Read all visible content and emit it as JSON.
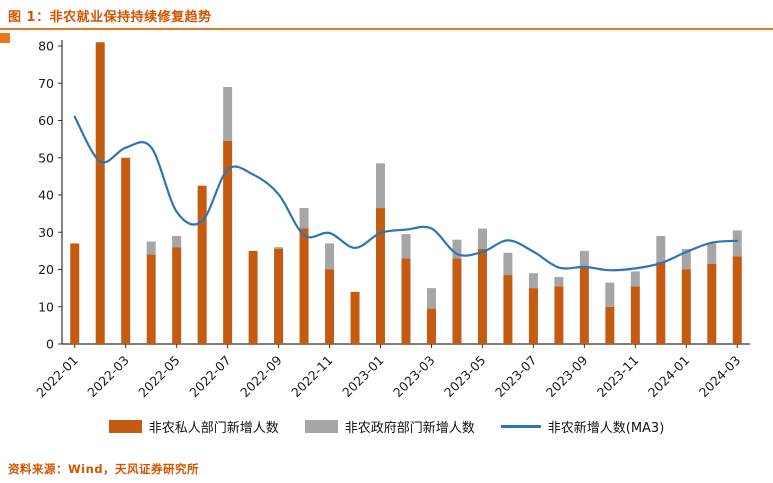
{
  "header": {
    "title": "图 1：非农就业保持持续修复趋势",
    "accent_color": "#e87722",
    "title_color": "#d35400"
  },
  "footer": {
    "source": "资料来源：Wind，天风证券研究所"
  },
  "legend": [
    {
      "label": "非农私人部门新增人数",
      "swatch": "orange-bar",
      "color": "#c55a11"
    },
    {
      "label": "非农政府部门新增人数",
      "swatch": "gray-bar",
      "color": "#a6a6a6"
    },
    {
      "label": "非农新增人数(MA3)",
      "swatch": "blue-line",
      "color": "#2e75b6"
    }
  ],
  "chart_data": {
    "type": "bar",
    "subtype": "stacked-bar-with-line",
    "title": "非农就业保持持续修复趋势",
    "xlabel": "",
    "ylabel": "",
    "ylim": [
      0,
      80
    ],
    "y_ticks": [
      0,
      10,
      20,
      30,
      40,
      50,
      60,
      70,
      80
    ],
    "grid": false,
    "legend_position": "bottom",
    "categories": [
      "2022-01",
      "2022-02",
      "2022-03",
      "2022-04",
      "2022-05",
      "2022-06",
      "2022-07",
      "2022-08",
      "2022-09",
      "2022-10",
      "2022-11",
      "2022-12",
      "2023-01",
      "2023-02",
      "2023-03",
      "2023-04",
      "2023-05",
      "2023-06",
      "2023-07",
      "2023-08",
      "2023-09",
      "2023-10",
      "2023-11",
      "2023-12",
      "2024-01",
      "2024-02",
      "2024-03"
    ],
    "x_label_every": 2,
    "series": [
      {
        "name": "非农私人部门新增人数",
        "type": "bar",
        "stack": "jobs",
        "color": "#c55a11",
        "values": [
          27,
          81,
          50,
          24,
          26,
          42.5,
          54.5,
          25,
          25.5,
          31,
          20,
          14,
          36.5,
          23,
          9.5,
          23,
          25.5,
          18.5,
          15,
          15.5,
          20.5,
          10,
          15.5,
          22,
          20,
          21.5,
          23.5
        ]
      },
      {
        "name": "非农政府部门新增人数",
        "type": "bar",
        "stack": "jobs",
        "color": "#a6a6a6",
        "values": [
          0,
          0,
          0,
          3.5,
          3,
          0,
          14.5,
          0,
          0.5,
          5.5,
          7,
          0,
          12,
          6.5,
          5.5,
          5,
          5.5,
          6,
          4,
          2.5,
          4.5,
          6.5,
          4,
          7,
          5.5,
          5.5,
          7
        ]
      },
      {
        "name": "非农新增人数(MA3)",
        "type": "line",
        "color": "#2e75b6",
        "values": [
          61,
          49,
          52.7,
          52.8,
          35.5,
          33,
          46.8,
          45.5,
          40.2,
          29.2,
          29.8,
          25.8,
          29.8,
          30.7,
          31,
          24.2,
          24.7,
          27.8,
          24.8,
          20.5,
          20.7,
          19.8,
          20.3,
          21.7,
          24.7,
          27.2,
          27.7
        ]
      }
    ]
  }
}
